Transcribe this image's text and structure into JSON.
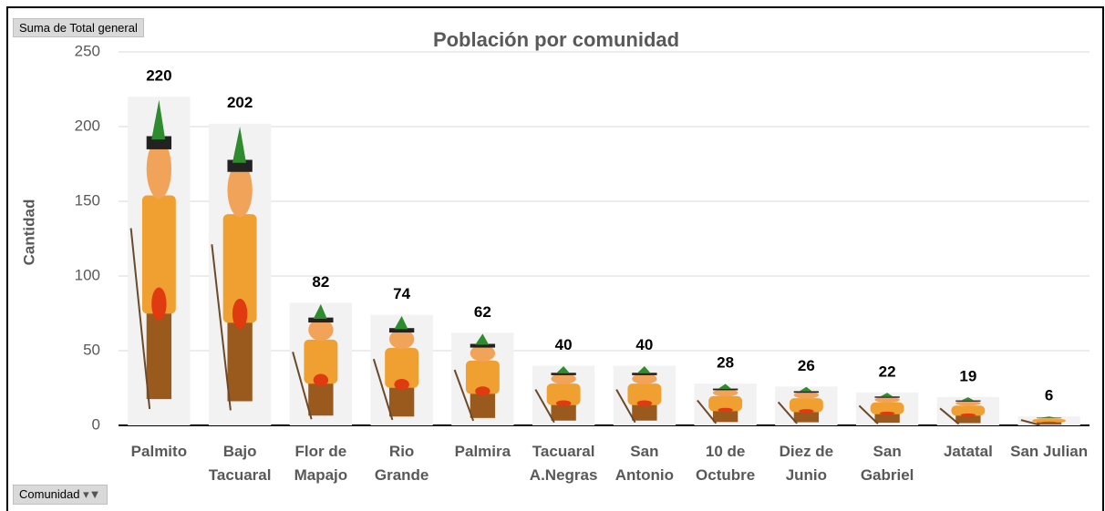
{
  "chart_data": {
    "type": "bar",
    "title": "Población por comunidad",
    "value_field_button": "Suma de Total general",
    "axis_field_button": "Comunidad",
    "y_label": "Cantidad",
    "categories": [
      "Palmito",
      "Bajo Tacuaral",
      "Flor de Mapajo",
      "Rio Grande",
      "Palmira",
      "Tacuaral A.Negras",
      "San Antonio",
      "10 de Octubre",
      "Diez de Junio",
      "San Gabriel",
      "Jatatal",
      "San Julian"
    ],
    "values": [
      220,
      202,
      82,
      74,
      62,
      40,
      40,
      28,
      26,
      22,
      19,
      6
    ],
    "color": "#f2f2f2",
    "ylim": [
      0,
      250
    ],
    "yticks": [
      0,
      50,
      100,
      150,
      200,
      250
    ],
    "grid": true
  }
}
